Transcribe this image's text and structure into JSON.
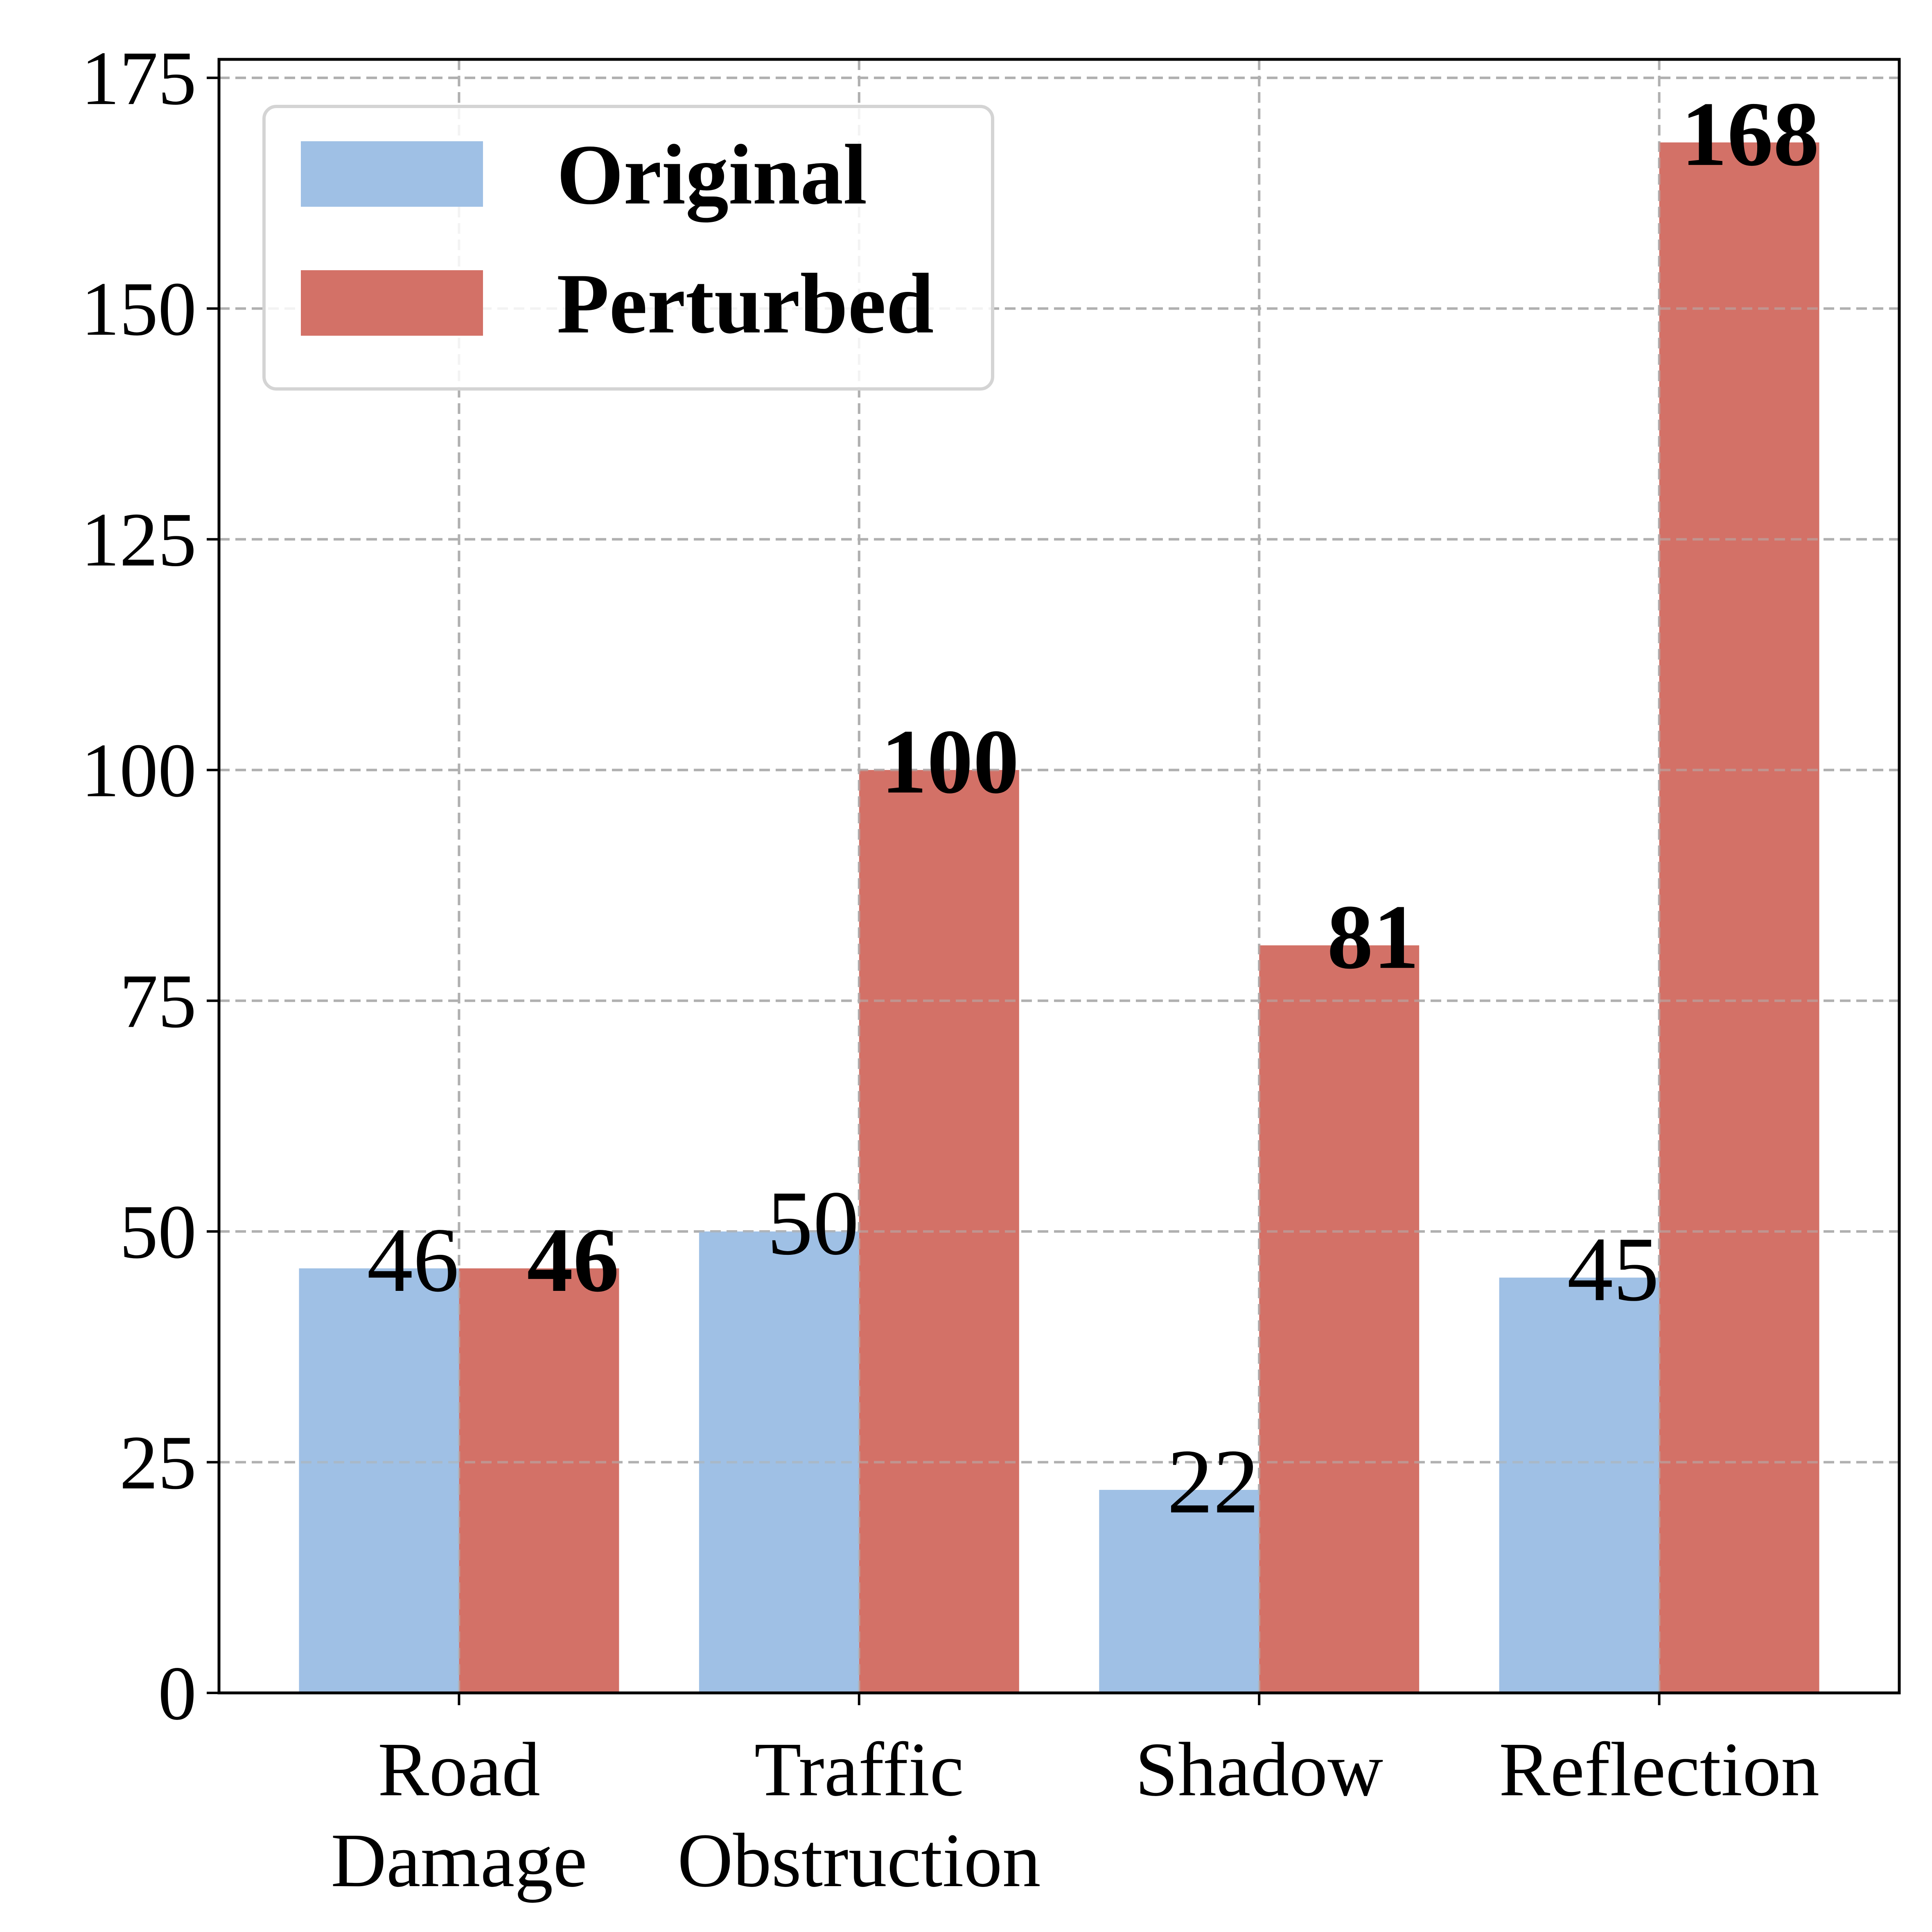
{
  "chart_data": {
    "type": "bar",
    "title": "",
    "xlabel": "",
    "ylabel": "",
    "categories": [
      "Road\nDamage",
      "Traffic\nObstruction",
      "Shadow",
      "Reflection"
    ],
    "series": [
      {
        "name": "Original",
        "values": [
          46,
          50,
          22,
          45
        ],
        "color": "#9fc0e5",
        "label_style": "normal"
      },
      {
        "name": "Perturbed",
        "values": [
          46,
          100,
          81,
          168
        ],
        "color": "#d37167",
        "label_style": "bold"
      }
    ],
    "ylim": [
      0,
      177
    ],
    "yticks": [
      0,
      25,
      50,
      75,
      100,
      125,
      150,
      175
    ],
    "grid": true,
    "legend_position": "top-left"
  }
}
